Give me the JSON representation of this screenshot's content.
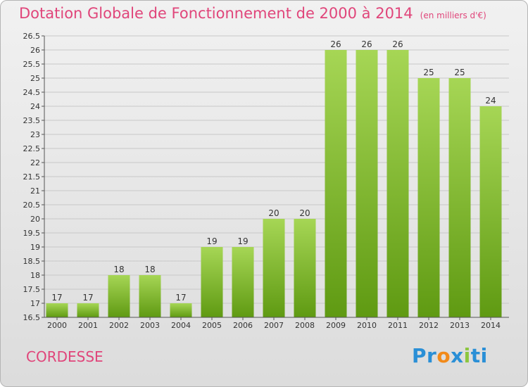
{
  "title": "Dotation Globale de Fonctionnement de 2000 à 2014",
  "unit": "(en milliers d'€)",
  "city": "CORDESSE",
  "logo": {
    "text": "Proxiti",
    "letters": [
      "P",
      "r",
      "o",
      "x",
      "i",
      "t",
      "i"
    ],
    "colors": [
      "#2a8fd6",
      "#2a8fd6",
      "#f28a1a",
      "#2a8fd6",
      "#8cc63f",
      "#2a8fd6",
      "#2a8fd6"
    ]
  },
  "colors": {
    "bar_top": "#a6d655",
    "bar_bottom": "#5f9a12",
    "title": "#e0457a",
    "grid": "#c8c8c8"
  },
  "chart_data": {
    "type": "bar",
    "categories": [
      "2000",
      "2001",
      "2002",
      "2003",
      "2004",
      "2005",
      "2006",
      "2007",
      "2008",
      "2009",
      "2010",
      "2011",
      "2012",
      "2013",
      "2014"
    ],
    "values": [
      17,
      17,
      18,
      18,
      17,
      19,
      19,
      20,
      20,
      26,
      26,
      26,
      25,
      25,
      24
    ],
    "ylim": [
      16.5,
      26.5
    ],
    "yticks": [
      "16.5",
      "17",
      "17.5",
      "18",
      "18.5",
      "19",
      "19.5",
      "20",
      "20.5",
      "21",
      "21.5",
      "22",
      "22.5",
      "23",
      "23.5",
      "24",
      "24.5",
      "25",
      "25.5",
      "26",
      "26.5"
    ],
    "grid": true
  }
}
